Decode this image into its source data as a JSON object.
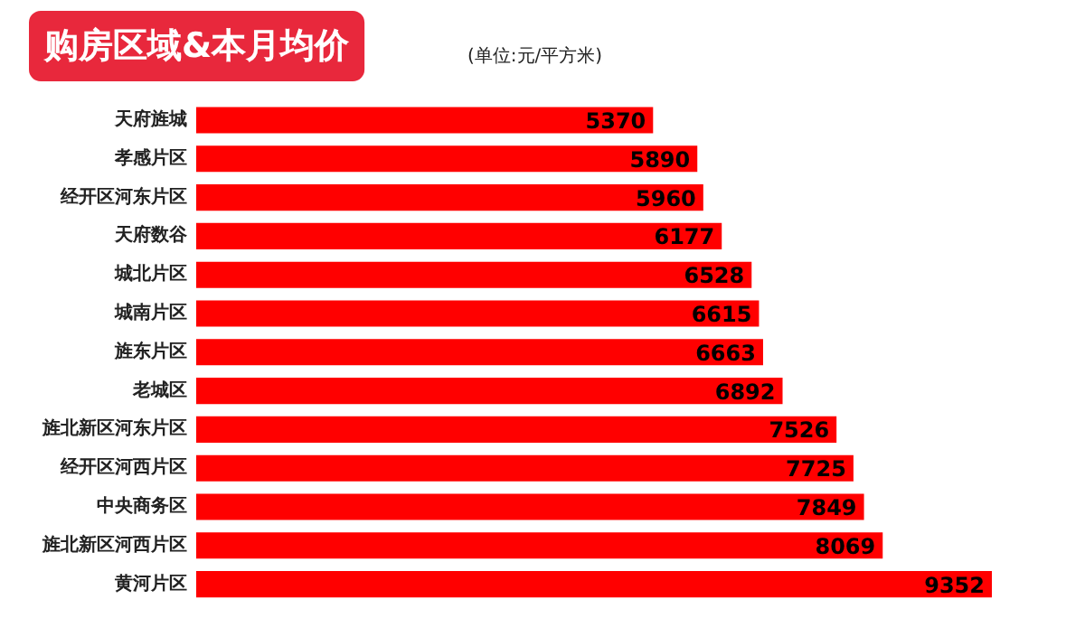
{
  "chart_data": {
    "type": "bar",
    "orientation": "horizontal",
    "title": "购房区域&本月均价",
    "subtitle": "(单位:元/平方米)",
    "categories": [
      "天府旌城",
      "孝感片区",
      "经开区河东片区",
      "天府数谷",
      "城北片区",
      "城南片区",
      "旌东片区",
      "老城区",
      "旌北新区河东片区",
      "经开区河西片区",
      "中央商务区",
      "旌北新区河西片区",
      "黄河片区"
    ],
    "values": [
      5370,
      5890,
      5960,
      6177,
      6528,
      6615,
      6663,
      6892,
      7526,
      7725,
      7849,
      8069,
      9352
    ],
    "color": "#ff0000",
    "data_labels": true
  }
}
